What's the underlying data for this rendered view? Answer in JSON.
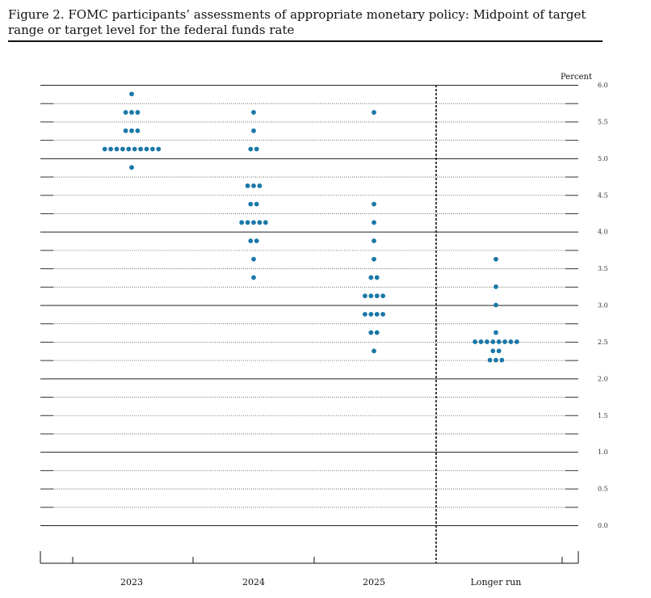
{
  "title": "Figure 2.  FOMC participants’ assessments of appropriate monetary policy:  Midpoint of target range or target level for the federal funds rate",
  "chart_data": {
    "type": "scatter",
    "title": "Figure 2.  FOMC participants’ assessments of appropriate monetary policy:  Midpoint of target range or target level for the federal funds rate",
    "ylabel": "Percent",
    "ylim": [
      0,
      6
    ],
    "y_ticks": [
      "0.0",
      "0.5",
      "1.0",
      "1.5",
      "2.0",
      "2.5",
      "3.0",
      "3.5",
      "4.0",
      "4.5",
      "5.0",
      "5.5",
      "6.0"
    ],
    "grid": true,
    "categories": [
      "2023",
      "2024",
      "2025",
      "Longer run"
    ],
    "dot_color": "#1a78a8",
    "dots": [
      {
        "category": "2023",
        "y": 5.875,
        "count": 1
      },
      {
        "category": "2023",
        "y": 5.625,
        "count": 3
      },
      {
        "category": "2023",
        "y": 5.375,
        "count": 3
      },
      {
        "category": "2023",
        "y": 5.125,
        "count": 10
      },
      {
        "category": "2023",
        "y": 4.875,
        "count": 1
      },
      {
        "category": "2024",
        "y": 5.625,
        "count": 1
      },
      {
        "category": "2024",
        "y": 5.375,
        "count": 1
      },
      {
        "category": "2024",
        "y": 5.125,
        "count": 2
      },
      {
        "category": "2024",
        "y": 4.625,
        "count": 3
      },
      {
        "category": "2024",
        "y": 4.375,
        "count": 2
      },
      {
        "category": "2024",
        "y": 4.125,
        "count": 5
      },
      {
        "category": "2024",
        "y": 3.875,
        "count": 2
      },
      {
        "category": "2024",
        "y": 3.625,
        "count": 1
      },
      {
        "category": "2024",
        "y": 3.375,
        "count": 1
      },
      {
        "category": "2025",
        "y": 5.625,
        "count": 1
      },
      {
        "category": "2025",
        "y": 4.375,
        "count": 1
      },
      {
        "category": "2025",
        "y": 4.125,
        "count": 1
      },
      {
        "category": "2025",
        "y": 3.875,
        "count": 1
      },
      {
        "category": "2025",
        "y": 3.625,
        "count": 1
      },
      {
        "category": "2025",
        "y": 3.375,
        "count": 2
      },
      {
        "category": "2025",
        "y": 3.125,
        "count": 4
      },
      {
        "category": "2025",
        "y": 2.875,
        "count": 4
      },
      {
        "category": "2025",
        "y": 2.625,
        "count": 2
      },
      {
        "category": "2025",
        "y": 2.375,
        "count": 1
      },
      {
        "category": "Longer run",
        "y": 3.625,
        "count": 1
      },
      {
        "category": "Longer run",
        "y": 3.25,
        "count": 1
      },
      {
        "category": "Longer run",
        "y": 3.0,
        "count": 1
      },
      {
        "category": "Longer run",
        "y": 2.625,
        "count": 1
      },
      {
        "category": "Longer run",
        "y": 2.5,
        "count": 8
      },
      {
        "category": "Longer run",
        "y": 2.375,
        "count": 2
      },
      {
        "category": "Longer run",
        "y": 2.25,
        "count": 3
      }
    ]
  }
}
